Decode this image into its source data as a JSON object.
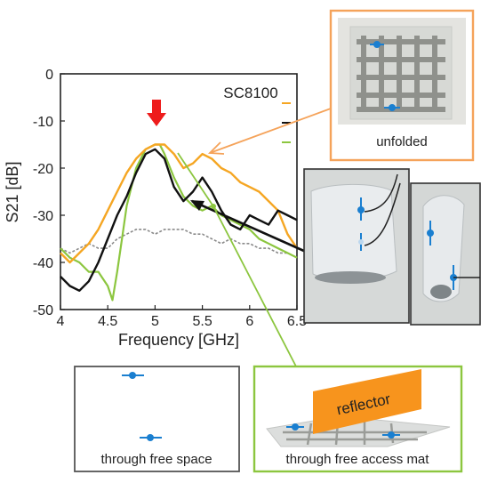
{
  "chart_data": {
    "type": "line",
    "title": "SC8100",
    "xlabel": "Frequency [GHz]",
    "ylabel": "S21 [dB]",
    "xlim": [
      4,
      6.5
    ],
    "ylim": [
      -50,
      0
    ],
    "xticks": [
      4,
      4.5,
      5,
      5.5,
      6,
      6.5
    ],
    "xtick_labels": [
      "4",
      "4.5",
      "5",
      "5.5",
      "6",
      "6.5"
    ],
    "yticks": [
      0,
      -10,
      -20,
      -30,
      -40,
      -50
    ],
    "ytick_labels": [
      "0",
      "-10",
      "-20",
      "-30",
      "-40",
      "-50"
    ],
    "grid": false,
    "legend": "top-right",
    "colors": {
      "unfolded": "#f5a623",
      "folded": "#111111",
      "free_access_mat": "#8cc63f",
      "free_space": "#8a8a8a",
      "peak_marker": "#ee1c1c",
      "frame_orange": "#f5a35a",
      "frame_black": "#333333",
      "frame_green": "#8cc63f",
      "reflector": "#f7941d"
    },
    "series": [
      {
        "key": "unfolded",
        "x": [
          4.0,
          4.1,
          4.2,
          4.3,
          4.4,
          4.5,
          4.6,
          4.7,
          4.8,
          4.9,
          5.0,
          5.1,
          5.2,
          5.3,
          5.4,
          5.5,
          5.6,
          5.7,
          5.8,
          5.9,
          6.0,
          6.1,
          6.2,
          6.3,
          6.4,
          6.5
        ],
        "y": [
          -38,
          -40,
          -38,
          -36,
          -33,
          -29,
          -25,
          -21,
          -18,
          -16,
          -15,
          -15,
          -17,
          -20,
          -19,
          -17,
          -18,
          -20,
          -21,
          -23,
          -24,
          -25,
          -27,
          -29,
          -34,
          -37
        ]
      },
      {
        "key": "folded",
        "x": [
          4.0,
          4.1,
          4.2,
          4.3,
          4.4,
          4.5,
          4.6,
          4.7,
          4.8,
          4.9,
          5.0,
          5.1,
          5.2,
          5.3,
          5.4,
          5.5,
          5.6,
          5.7,
          5.8,
          5.9,
          6.0,
          6.1,
          6.2,
          6.3,
          6.4,
          6.5
        ],
        "y": [
          -43,
          -45,
          -46,
          -44,
          -40,
          -35,
          -30,
          -26,
          -21,
          -17,
          -16,
          -18,
          -24,
          -27,
          -25,
          -22,
          -25,
          -29,
          -32,
          -33,
          -30,
          -31,
          -32,
          -29,
          -30,
          -31
        ]
      },
      {
        "key": "free_access_mat",
        "x": [
          4.0,
          4.1,
          4.2,
          4.3,
          4.4,
          4.5,
          4.55,
          4.6,
          4.65,
          4.7,
          4.8,
          4.9,
          5.0,
          5.05,
          5.1,
          5.2,
          5.3,
          5.4,
          5.5,
          5.6,
          5.7,
          5.8,
          5.9,
          6.0,
          6.1,
          6.2,
          6.3,
          6.4,
          6.5
        ],
        "y": [
          -37,
          -39,
          -40,
          -42,
          -42,
          -45,
          -48,
          -42,
          -35,
          -28,
          -20,
          -16,
          -15,
          -15,
          -17,
          -22,
          -26,
          -28,
          -29,
          -28,
          -30,
          -31,
          -32,
          -33,
          -35,
          -36,
          -37,
          -38,
          -39
        ]
      },
      {
        "key": "free_space",
        "x": [
          4.0,
          4.1,
          4.2,
          4.3,
          4.4,
          4.5,
          4.6,
          4.7,
          4.8,
          4.9,
          5.0,
          5.1,
          5.2,
          5.3,
          5.4,
          5.5,
          5.6,
          5.7,
          5.8,
          5.9,
          6.0,
          6.1,
          6.2,
          6.3,
          6.4,
          6.5
        ],
        "y": [
          -37,
          -38,
          -37,
          -36,
          -37,
          -37,
          -35,
          -34,
          -33,
          -33,
          -34,
          -33,
          -33,
          -33,
          -34,
          -34,
          -35,
          -36,
          -35,
          -36,
          -36,
          -37,
          -37,
          -38,
          -38,
          -39
        ]
      }
    ]
  },
  "labels": {
    "unfolded": "unfolded",
    "free_space": "through free space",
    "free_access_mat": "through free access mat",
    "reflector": "reflector"
  },
  "icons": {
    "peak_marker": "down-arrow-icon",
    "antenna": "antenna-dot-icon"
  }
}
